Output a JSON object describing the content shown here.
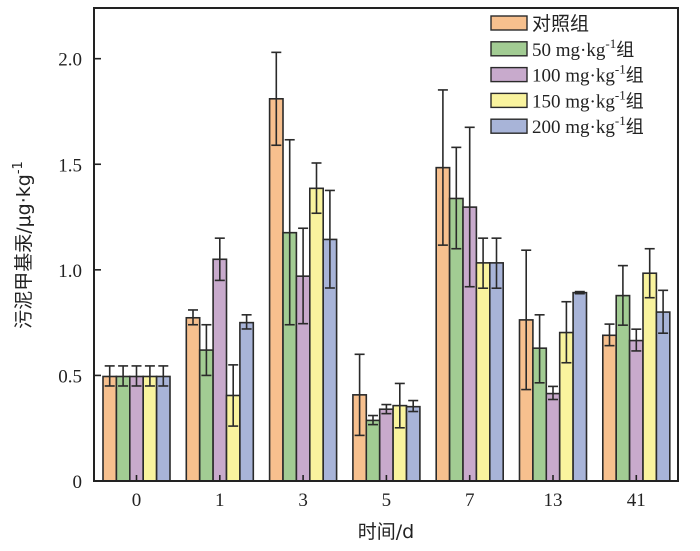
{
  "chart_data": {
    "type": "bar",
    "title": "",
    "xlabel": "时间/d",
    "ylabel": "污泥甲基汞/μg·kg",
    "ylabel_superscript": "-1",
    "ylim": [
      0,
      2.24
    ],
    "yticks": [
      0,
      0.5,
      1.0,
      1.5,
      2.0
    ],
    "ytick_labels": [
      "0",
      "0.5",
      "1.0",
      "1.5",
      "2.0"
    ],
    "categories": [
      "0",
      "1",
      "3",
      "5",
      "7",
      "13",
      "41"
    ],
    "legend_position": "top-right",
    "series": [
      {
        "name": "对照组",
        "legend_parts": [
          "对照组"
        ],
        "color": "#F7C08E",
        "values": [
          0.495,
          0.773,
          1.81,
          0.408,
          1.484,
          0.763,
          0.69
        ],
        "err_high": [
          0.545,
          0.81,
          2.03,
          0.6,
          1.852,
          1.093,
          0.743
        ],
        "err_low": [
          0.45,
          0.74,
          1.59,
          0.216,
          1.117,
          0.433,
          0.641
        ]
      },
      {
        "name": "50 mg·kg-1组",
        "legend_parts": [
          "50 mg·kg",
          "-1",
          "组"
        ],
        "color": "#A2CC93",
        "values": [
          0.495,
          0.62,
          1.176,
          0.287,
          1.338,
          0.629,
          0.878
        ],
        "err_high": [
          0.545,
          0.74,
          1.616,
          0.31,
          1.58,
          0.787,
          1.02
        ],
        "err_low": [
          0.45,
          0.5,
          0.74,
          0.267,
          1.1,
          0.465,
          0.738
        ]
      },
      {
        "name": "100 mg·kg-1组",
        "legend_parts": [
          "100 mg·kg",
          "-1",
          "组"
        ],
        "color": "#C8AACC",
        "values": [
          0.495,
          1.05,
          0.97,
          0.34,
          1.297,
          0.414,
          0.665
        ],
        "err_high": [
          0.545,
          1.15,
          1.197,
          0.362,
          1.675,
          0.448,
          0.719
        ],
        "err_low": [
          0.45,
          0.95,
          0.745,
          0.319,
          0.92,
          0.386,
          0.616
        ]
      },
      {
        "name": "150 mg·kg-1组",
        "legend_parts": [
          "150 mg·kg",
          "-1",
          "组"
        ],
        "color": "#F9F39E",
        "values": [
          0.495,
          0.405,
          1.386,
          0.357,
          1.033,
          0.703,
          0.984
        ],
        "err_high": [
          0.545,
          0.55,
          1.506,
          0.462,
          1.15,
          0.849,
          1.1
        ],
        "err_low": [
          0.45,
          0.26,
          1.268,
          0.252,
          0.913,
          0.56,
          0.868
        ]
      },
      {
        "name": "200 mg·kg-1组",
        "legend_parts": [
          "200 mg·kg",
          "-1",
          "组"
        ],
        "color": "#A8B4D8",
        "values": [
          0.495,
          0.75,
          1.144,
          0.352,
          1.033,
          0.892,
          0.8
        ],
        "err_high": [
          0.545,
          0.787,
          1.376,
          0.381,
          1.15,
          0.897,
          0.903
        ],
        "err_low": [
          0.45,
          0.72,
          0.914,
          0.329,
          0.913,
          0.887,
          0.7
        ]
      }
    ]
  }
}
